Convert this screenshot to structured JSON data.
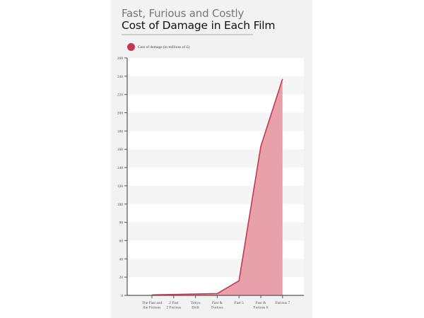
{
  "header": {
    "subtitle": "Fast, Furious and Costly",
    "title": "Cost of Damage in Each Film"
  },
  "legend": {
    "label": "Cost of damage (in millions of £)",
    "color": "#c8374f"
  },
  "colors": {
    "line": "#c8374f",
    "fill": "#e8a0aa",
    "card_bg": "#f2f2f2",
    "stripe": "#f5f5f5",
    "axis": "#555555"
  },
  "chart_data": {
    "type": "area",
    "title": "Cost of Damage in Each Film",
    "subtitle": "Fast, Furious and Costly",
    "xlabel": "",
    "ylabel": "",
    "categories": [
      "The Fast and the Furious",
      "2 Fast 2 Furious",
      "Tokyo Drift",
      "Fast & Furious",
      "Fast 5",
      "Fast & Furious 6",
      "Furious 7"
    ],
    "category_lines": [
      [
        "The Fast and",
        "the Furious"
      ],
      [
        "2 Fast",
        "2 Furious"
      ],
      [
        "Tokyo",
        "Drift"
      ],
      [
        "Fast &",
        "Furious"
      ],
      [
        "Fast 5"
      ],
      [
        "Fast &",
        "Furious 6"
      ],
      [
        "Furious 7"
      ]
    ],
    "series": [
      {
        "name": "Cost of damage (in millions of £)",
        "values": [
          0.5,
          1,
          1.5,
          2,
          16,
          163,
          237
        ]
      }
    ],
    "ylim": [
      0,
      260
    ],
    "yticks": [
      0,
      20,
      40,
      60,
      80,
      100,
      120,
      140,
      160,
      180,
      200,
      220,
      240,
      260
    ],
    "grid": "alternating horizontal stripes",
    "legend_position": "top-left"
  }
}
